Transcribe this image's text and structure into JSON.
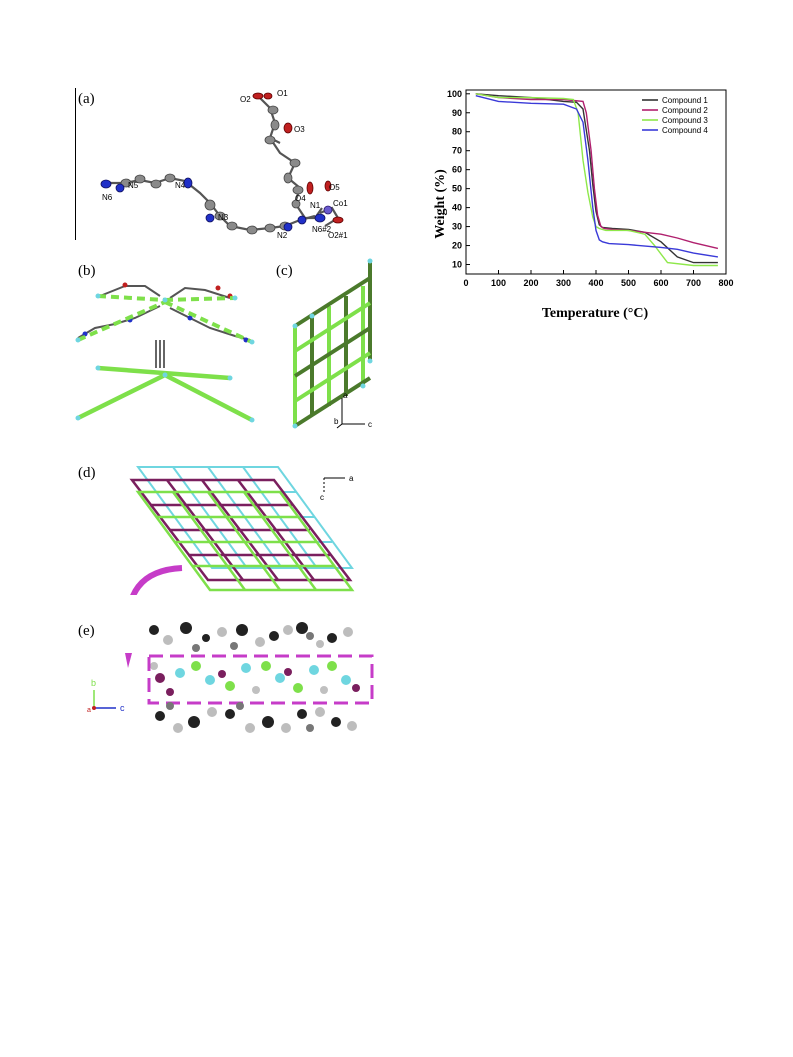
{
  "panels": {
    "a": "(a)",
    "b": "(b)",
    "c": "(c)",
    "d": "(d)",
    "e": "(e)"
  },
  "atom_labels": {
    "O1": "O1",
    "O2": "O2",
    "O3": "O3",
    "O4": "O4",
    "O5": "O5",
    "N1": "N1",
    "N2": "N2",
    "N3": "N3",
    "N4": "N4",
    "N5": "N5",
    "N6": "N6",
    "Co1": "Co1",
    "N6b": "N6#2",
    "O2b": "O2#1"
  },
  "axes_labels": {
    "c_a": "a",
    "c_b": "b",
    "c_c": "c",
    "d_a": "a",
    "d_c": "c",
    "e_b": "b",
    "e_a": "a",
    "e_c": "c"
  },
  "colors": {
    "green": "#7ee04a",
    "dark_green": "#4b7a2c",
    "cyan": "#6fd6e0",
    "purple": "#7a1f5e",
    "magenta": "#c63cc8",
    "carbon": "#8a8a8a",
    "nitrogen": "#2030c8",
    "oxygen": "#c02020"
  },
  "chart_data": {
    "type": "line",
    "xlabel": "Temperature (°C)",
    "ylabel": "Weight (%)",
    "xlim": [
      0,
      800
    ],
    "ylim": [
      5,
      102
    ],
    "xticks": [
      "0",
      "100",
      "200",
      "300",
      "400",
      "500",
      "600",
      "700",
      "800"
    ],
    "yticks": [
      "10",
      "20",
      "30",
      "40",
      "50",
      "60",
      "70",
      "80",
      "90",
      "100"
    ],
    "legend_position": "top-right",
    "series": [
      {
        "name": "Compound 1",
        "color": "#333333",
        "x": [
          30,
          100,
          200,
          300,
          340,
          360,
          380,
          390,
          400,
          410,
          420,
          450,
          500,
          550,
          600,
          650,
          700,
          775
        ],
        "y": [
          100,
          99,
          98,
          96,
          95.5,
          92,
          70,
          52,
          38,
          31,
          29.5,
          29,
          28.5,
          27,
          22,
          14,
          11,
          11
        ]
      },
      {
        "name": "Compound 2",
        "color": "#b0206e",
        "x": [
          30,
          100,
          200,
          300,
          360,
          370,
          385,
          395,
          405,
          415,
          425,
          450,
          500,
          550,
          600,
          650,
          700,
          775
        ],
        "y": [
          100,
          98,
          97,
          97,
          96,
          90,
          70,
          50,
          36,
          30,
          29,
          28.5,
          28,
          27,
          26,
          24,
          21.5,
          18.5
        ]
      },
      {
        "name": "Compound 3",
        "color": "#8ee84a",
        "x": [
          30,
          100,
          200,
          300,
          330,
          345,
          360,
          375,
          390,
          400,
          410,
          430,
          500,
          550,
          580,
          620,
          700,
          775
        ],
        "y": [
          100,
          98,
          98,
          97.5,
          97,
          90,
          65,
          48,
          35,
          30,
          29,
          28,
          28,
          26,
          20,
          11,
          9.5,
          9.5
        ]
      },
      {
        "name": "Compound 4",
        "color": "#3a3ad8",
        "x": [
          30,
          100,
          200,
          300,
          340,
          360,
          375,
          390,
          400,
          410,
          420,
          440,
          500,
          600,
          650,
          700,
          775
        ],
        "y": [
          99,
          96,
          95,
          94.5,
          92,
          85,
          65,
          40,
          28,
          23,
          22,
          21,
          20.5,
          19,
          18,
          16,
          14
        ]
      }
    ]
  }
}
